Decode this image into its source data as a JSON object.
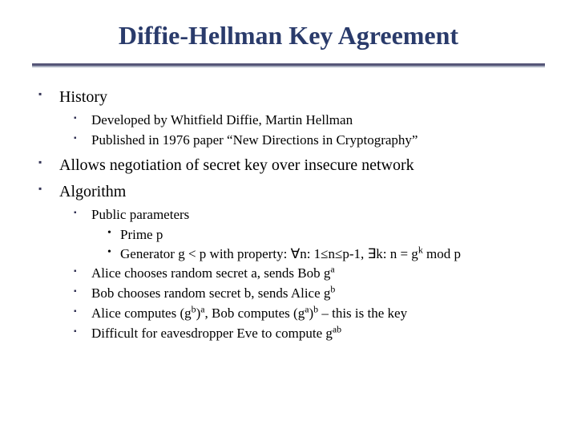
{
  "colors": {
    "title_color": "#2a3b6b",
    "rule_top": "#555577",
    "rule_bottom": "#aab0c0",
    "bullet_color": "#333355",
    "text_color": "#000000",
    "background": "#ffffff"
  },
  "typography": {
    "font_family": "Garamond / Times-like serif",
    "title_fontsize": 32,
    "level1_fontsize": 20,
    "level2_fontsize": 17,
    "level3_fontsize": 17
  },
  "title": "Diffie-Hellman Key Agreement",
  "bullets": {
    "history": {
      "label": "History",
      "sub": {
        "developed": "Developed by Whitfield Diffie, Martin Hellman",
        "published": "Published in 1976 paper “New Directions in Cryptography”"
      }
    },
    "allows": "Allows negotiation of secret key over insecure network",
    "algorithm": {
      "label": "Algorithm",
      "sub": {
        "public_params": {
          "label": "Public parameters",
          "items": {
            "prime": "Prime p",
            "generator_html": "Generator g < p with property: ∀n: 1≤n≤p-1, ∃k: n = g<sup>k</sup> mod p"
          }
        },
        "alice_send_html": "Alice chooses random secret a, sends Bob g<sup>a</sup>",
        "bob_send_html": "Bob chooses random secret b, sends Alice g<sup>b</sup>",
        "compute_html": "Alice computes (g<sup>b</sup>)<sup>a</sup>, Bob computes (g<sup>a</sup>)<sup>b</sup> – this is the key",
        "eve_html": "Difficult for eavesdropper Eve to compute g<sup>ab</sup>"
      }
    }
  }
}
